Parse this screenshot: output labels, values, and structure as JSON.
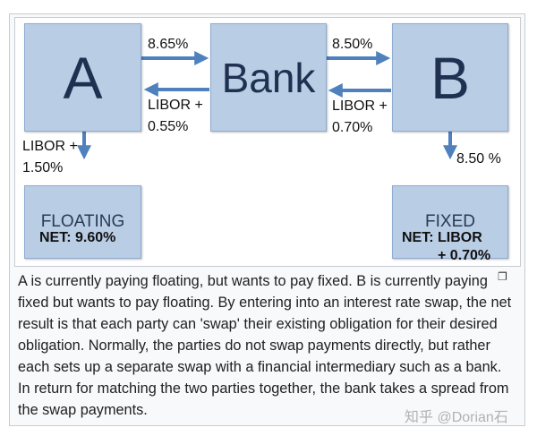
{
  "diagram": {
    "nodes": {
      "a": "A",
      "bank": "Bank",
      "b": "B",
      "floating": "FLOATING",
      "fixed": "FIXED"
    },
    "edges": {
      "a_to_bank": "8.65%",
      "bank_to_a_1": "LIBOR +",
      "bank_to_a_2": "0.55%",
      "bank_to_b": "8.50%",
      "b_to_bank_1": "LIBOR +",
      "b_to_bank_2": "0.70%",
      "a_to_floating_1": "LIBOR +",
      "a_to_floating_2": "1.50%",
      "b_to_fixed": "8.50 %"
    },
    "net_a": "NET: 9.60%",
    "net_b_1": "NET: LIBOR",
    "net_b_2": "+ 0.70%",
    "colors": {
      "box_fill": "#b9cde5",
      "arrow": "#4f81bd",
      "text": "#1f3050"
    }
  },
  "caption": "A is currently paying floating, but wants to pay fixed. B is currently paying fixed but wants to pay floating. By entering into an interest rate swap, the net result is that each party can 'swap' their existing obligation for their desired obligation. Normally, the parties do not swap payments directly, but rather each sets up a separate swap with a financial intermediary such as a bank. In return for matching the two parties together, the bank takes a spread from the swap payments.",
  "watermark": "知乎 @Dorian石",
  "enlarge_icon": "enlarge-icon"
}
